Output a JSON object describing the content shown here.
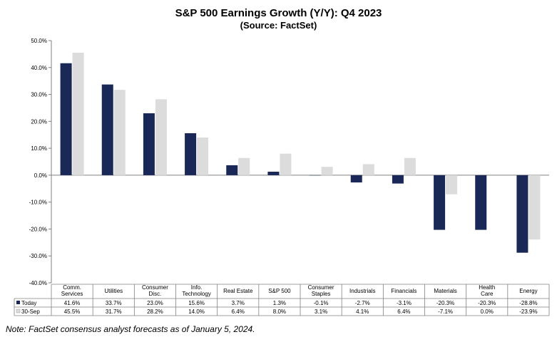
{
  "title": "S&P 500 Earnings Growth (Y/Y): Q4 2023",
  "subtitle": "(Source: FactSet)",
  "note": "Note: FactSet consensus analyst forecasts as of January 5, 2024.",
  "chart_data": {
    "type": "bar",
    "ylim": [
      -40,
      50
    ],
    "yticks": [
      50,
      40,
      30,
      20,
      10,
      0,
      -10,
      -20,
      -30,
      -40
    ],
    "ytick_labels": [
      "50.0%",
      "40.0%",
      "30.0%",
      "20.0%",
      "10.0%",
      "0.0%",
      "-10.0%",
      "-20.0%",
      "-30.0%",
      "-40.0%"
    ],
    "grid": false,
    "categories": [
      [
        "Comm.",
        "Services"
      ],
      [
        "Utilities"
      ],
      [
        "Consumer",
        "Disc."
      ],
      [
        "Info.",
        "Technology"
      ],
      [
        "Real Estate"
      ],
      [
        "S&P 500"
      ],
      [
        "Consumer",
        "Staples"
      ],
      [
        "Industrials"
      ],
      [
        "Financials"
      ],
      [
        "Materials"
      ],
      [
        "Health",
        "Care"
      ],
      [
        "Energy"
      ]
    ],
    "series": [
      {
        "name": "Today",
        "color": "#1a2857",
        "values": [
          41.6,
          33.7,
          23.0,
          15.6,
          3.7,
          1.3,
          -0.1,
          -2.7,
          -3.1,
          -20.3,
          -20.3,
          -28.8
        ],
        "labels": [
          "41.6%",
          "33.7%",
          "23.0%",
          "15.6%",
          "3.7%",
          "1.3%",
          "-0.1%",
          "-2.7%",
          "-3.1%",
          "-20.3%",
          "-20.3%",
          "-28.8%"
        ]
      },
      {
        "name": "30-Sep",
        "color": "#dcdcdc",
        "values": [
          45.5,
          31.7,
          28.2,
          14.0,
          6.4,
          8.0,
          3.1,
          4.1,
          6.4,
          -7.1,
          0.0,
          -23.9
        ],
        "labels": [
          "45.5%",
          "31.7%",
          "28.2%",
          "14.0%",
          "6.4%",
          "8.0%",
          "3.1%",
          "4.1%",
          "6.4%",
          "-7.1%",
          "0.0%",
          "-23.9%"
        ]
      }
    ]
  }
}
